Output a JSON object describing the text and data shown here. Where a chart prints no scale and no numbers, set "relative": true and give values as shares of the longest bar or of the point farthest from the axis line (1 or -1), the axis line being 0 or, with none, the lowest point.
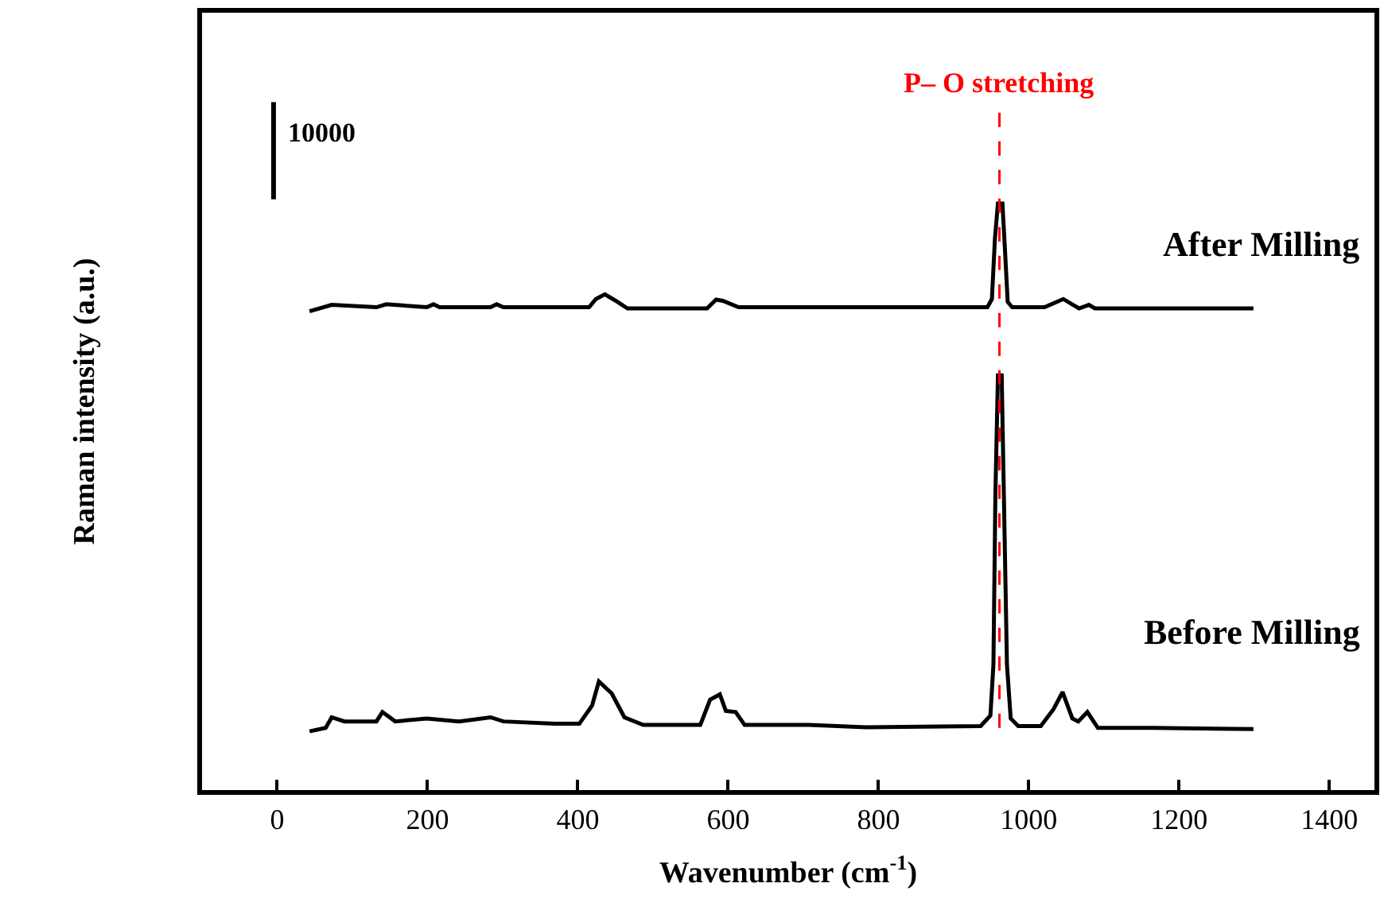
{
  "chart_data": {
    "type": "line",
    "relative": true,
    "xlabel": "Wavenumber (cm$^{-1}$)",
    "ylabel": "Raman intensity (a.u.)",
    "xlim": [
      -100,
      1460
    ],
    "xticks": [
      0,
      200,
      400,
      600,
      800,
      1000,
      1200,
      1400
    ],
    "legend": false,
    "marker": "none",
    "line_style": "solid",
    "tick_labels": "x",
    "annotations": [
      "10000"
    ],
    "ref_lines": [
      {
        "axis": "x",
        "value": 961,
        "label": "P– O stretching",
        "color": "#ff0000",
        "line_style": "dashed"
      }
    ],
    "series": [
      {
        "name": "After Milling",
        "color": "#000000",
        "x": [
          43,
          72.5,
          132,
          145,
          199,
          208,
          216,
          284,
          292,
          301,
          415,
          424,
          436,
          453,
          466,
          572,
          584,
          593,
          614,
          945,
          951,
          955,
          959,
          965,
          968,
          972,
          978,
          1021,
          1046,
          1059,
          1067,
          1080,
          1088,
          1299
        ],
        "values": [
          0.816,
          0.827,
          0.823,
          0.828,
          0.823,
          0.828,
          0.823,
          0.823,
          0.828,
          0.823,
          0.823,
          0.837,
          0.845,
          0.832,
          0.821,
          0.821,
          0.836,
          0.834,
          0.823,
          0.823,
          0.837,
          0.94,
          1.0,
          1.0,
          0.93,
          0.832,
          0.823,
          0.823,
          0.837,
          0.827,
          0.821,
          0.827,
          0.821,
          0.821
        ]
      },
      {
        "name": "Before Milling",
        "color": "#000000",
        "x": [
          43,
          64.5,
          72.5,
          89.5,
          132,
          140,
          157,
          199,
          242,
          284,
          301,
          369,
          402,
          419,
          428,
          445,
          462,
          487,
          563,
          576,
          589,
          597,
          610,
          622,
          707,
          783,
          936,
          949,
          953,
          955.6,
          959,
          964,
          967,
          971,
          976,
          986,
          1016,
          1033,
          1045,
          1058,
          1066,
          1078,
          1092,
          1164,
          1299
        ],
        "values": [
          0.1,
          0.106,
          0.124,
          0.117,
          0.117,
          0.133,
          0.117,
          0.122,
          0.117,
          0.124,
          0.117,
          0.113,
          0.113,
          0.144,
          0.185,
          0.165,
          0.124,
          0.111,
          0.111,
          0.154,
          0.163,
          0.135,
          0.133,
          0.111,
          0.111,
          0.107,
          0.109,
          0.127,
          0.214,
          0.501,
          0.707,
          0.707,
          0.496,
          0.214,
          0.122,
          0.109,
          0.109,
          0.138,
          0.167,
          0.122,
          0.117,
          0.133,
          0.106,
          0.106,
          0.104
        ]
      }
    ]
  }
}
